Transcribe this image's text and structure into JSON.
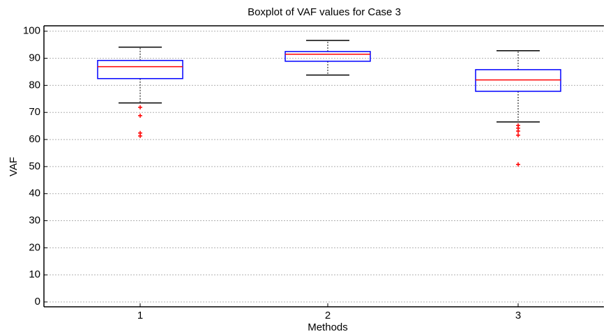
{
  "chart_data": {
    "type": "boxplot",
    "title": "Boxplot of VAF values for Case 3",
    "xlabel": "Methods",
    "ylabel": "VAF",
    "categories": [
      "1",
      "2",
      "3"
    ],
    "boxes": [
      {
        "whislo": 73.5,
        "q1": 82.5,
        "med": 86.9,
        "q3": 89.2,
        "whishi": 94.1,
        "fliers": [
          71.9,
          68.8,
          62.4,
          61.3
        ]
      },
      {
        "whislo": 83.8,
        "q1": 88.9,
        "med": 91.5,
        "q3": 92.5,
        "whishi": 96.6,
        "fliers": []
      },
      {
        "whislo": 66.5,
        "q1": 77.8,
        "med": 82.0,
        "q3": 85.8,
        "whishi": 92.8,
        "fliers": [
          65.2,
          64.2,
          63.1,
          61.6,
          50.8
        ]
      }
    ],
    "box_color": "#0000ff",
    "median_color": "#ff0000",
    "whisker_color": "#000000",
    "flier_color": "#ff0000",
    "ylim": [
      -1.8,
      102
    ],
    "yticks": [
      0,
      10,
      20,
      30,
      40,
      50,
      60,
      70,
      80,
      90,
      100
    ],
    "grid": true
  }
}
